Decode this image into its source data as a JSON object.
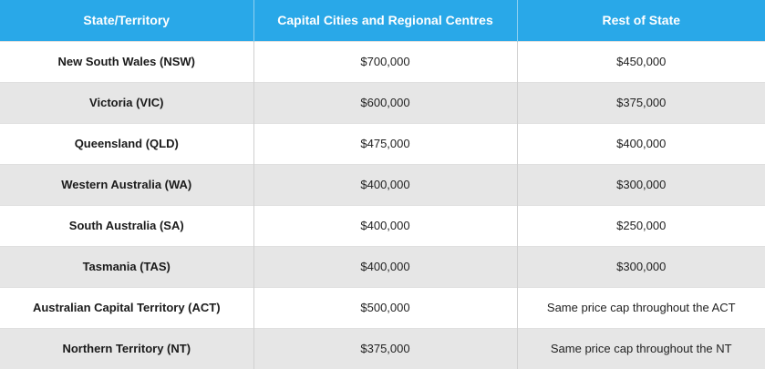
{
  "table": {
    "headers": [
      "State/Territory",
      "Capital Cities and Regional Centres",
      "Rest of State"
    ],
    "rows": [
      {
        "state": "New South Wales (NSW)",
        "capital": "$700,000",
        "rest": "$450,000"
      },
      {
        "state": "Victoria (VIC)",
        "capital": "$600,000",
        "rest": "$375,000"
      },
      {
        "state": "Queensland (QLD)",
        "capital": "$475,000",
        "rest": "$400,000"
      },
      {
        "state": "Western Australia (WA)",
        "capital": "$400,000",
        "rest": "$300,000"
      },
      {
        "state": "South Australia (SA)",
        "capital": "$400,000",
        "rest": "$250,000"
      },
      {
        "state": "Tasmania (TAS)",
        "capital": "$400,000",
        "rest": "$300,000"
      },
      {
        "state": "Australian Capital Territory (ACT)",
        "capital": "$500,000",
        "rest": "Same price cap throughout the ACT"
      },
      {
        "state": "Northern Territory (NT)",
        "capital": "$375,000",
        "rest": "Same price cap throughout the NT"
      }
    ]
  },
  "colors": {
    "header_bg": "#29a8e8",
    "header_text": "#ffffff",
    "row_alt_bg": "#e6e6e6",
    "row_bg": "#ffffff"
  }
}
